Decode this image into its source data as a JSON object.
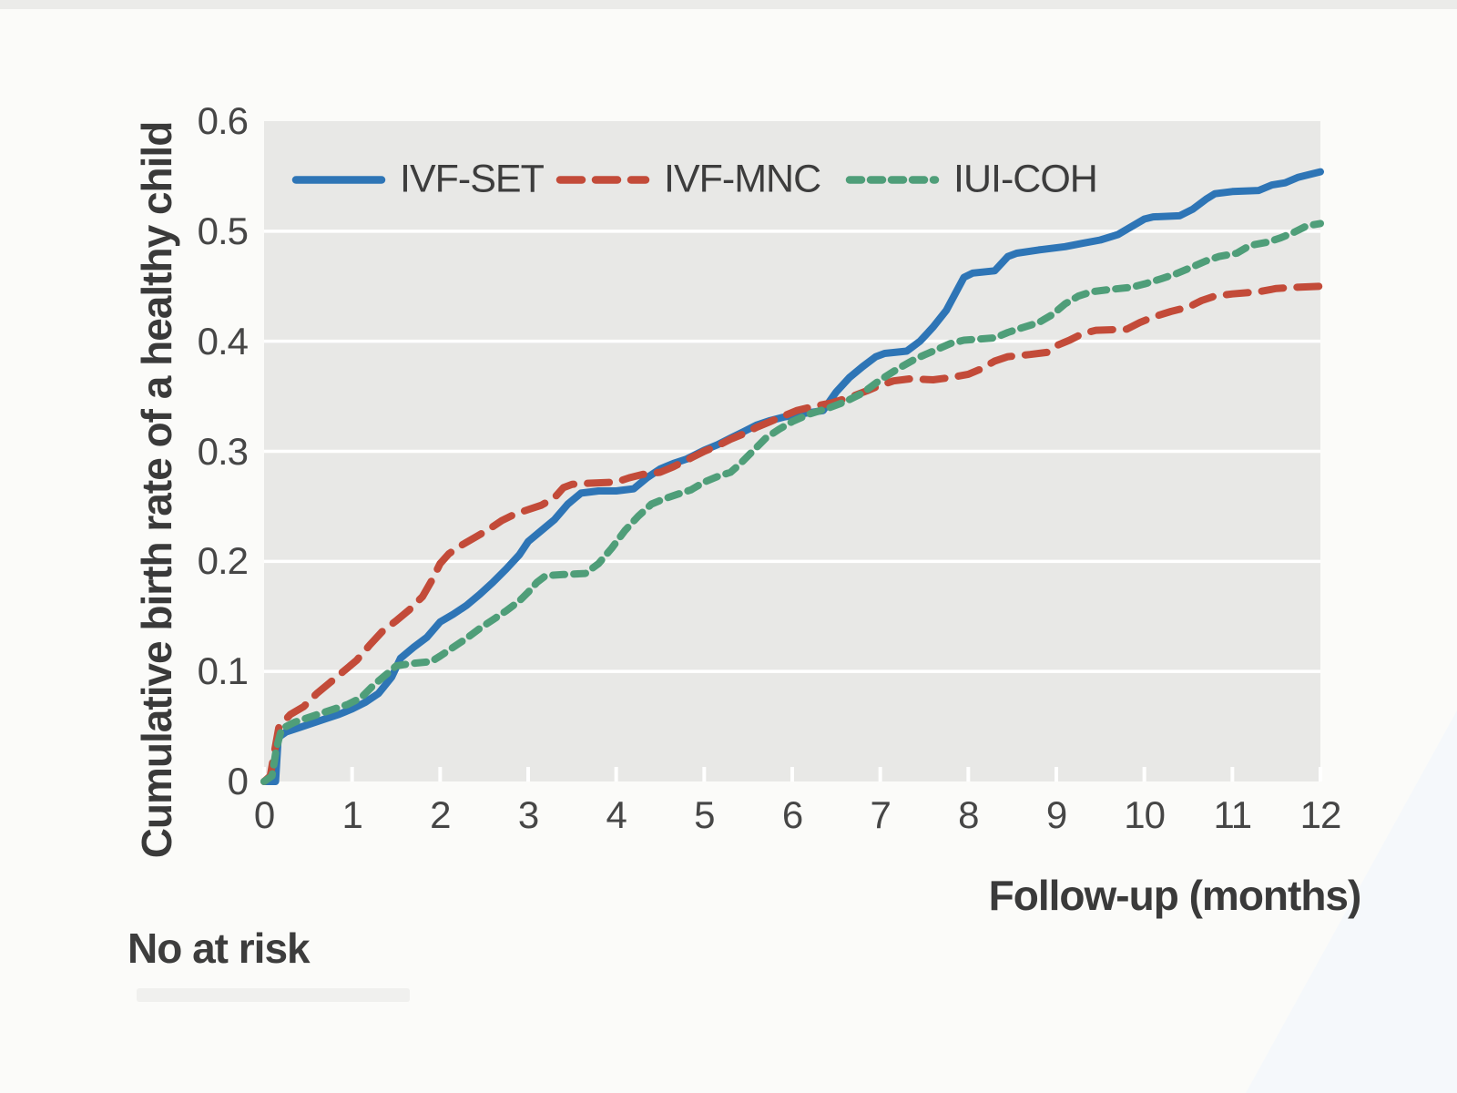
{
  "figure": {
    "footnote": "No at risk",
    "y_axis": {
      "title": "Cumulative birth rate of a healthy child",
      "tick_labels": [
        "0.6",
        "0.5",
        "0.4",
        "0.3",
        "0.2",
        "0.1",
        "0"
      ],
      "tick_values": [
        0.6,
        0.5,
        0.4,
        0.3,
        0.2,
        0.1,
        0
      ]
    },
    "x_axis": {
      "title": "Follow-up (months)",
      "tick_labels": [
        "0",
        "1",
        "2",
        "3",
        "4",
        "5",
        "6",
        "7",
        "8",
        "9",
        "10",
        "11",
        "12"
      ],
      "tick_values": [
        0,
        1,
        2,
        3,
        4,
        5,
        6,
        7,
        8,
        9,
        10,
        11,
        12
      ]
    }
  },
  "style": {
    "plot_background": "#e8e8e6",
    "gridline_color": "#ffffff",
    "page_background": "#fbfbf9",
    "text_color": "#3a3a3a",
    "tick_text_color": "#464646"
  },
  "legend": [
    {
      "label": "IVF-SET",
      "color": "#2e75b6",
      "dash": null
    },
    {
      "label": "IVF-MNC",
      "color": "#c34b39",
      "dash": [
        24,
        15
      ]
    },
    {
      "label": "IUI-COH",
      "color": "#4f9e79",
      "dash": [
        13,
        10
      ]
    }
  ],
  "chart_data": {
    "type": "line",
    "subtype": "cumulative-incidence-curves",
    "title": "",
    "xlabel": "Follow-up (months)",
    "ylabel": "Cumulative birth rate of a healthy child",
    "xlim": [
      0,
      12
    ],
    "ylim": [
      0,
      0.6
    ],
    "grid": "horizontal white gridlines on gray panel",
    "legend_position": "top-left inside plot",
    "series": [
      {
        "name": "IVF-SET",
        "color": "#2e75b6",
        "style": "solid",
        "dash": null,
        "points": [
          [
            0,
            0
          ],
          [
            0.13,
            0
          ],
          [
            0.16,
            0.04
          ],
          [
            0.25,
            0.045
          ],
          [
            0.4,
            0.049
          ],
          [
            0.55,
            0.053
          ],
          [
            0.7,
            0.057
          ],
          [
            0.85,
            0.061
          ],
          [
            1.0,
            0.066
          ],
          [
            1.15,
            0.072
          ],
          [
            1.3,
            0.08
          ],
          [
            1.45,
            0.095
          ],
          [
            1.55,
            0.112
          ],
          [
            1.7,
            0.122
          ],
          [
            1.85,
            0.131
          ],
          [
            2.0,
            0.145
          ],
          [
            2.15,
            0.152
          ],
          [
            2.3,
            0.16
          ],
          [
            2.45,
            0.17
          ],
          [
            2.6,
            0.181
          ],
          [
            2.75,
            0.193
          ],
          [
            2.9,
            0.206
          ],
          [
            3.0,
            0.218
          ],
          [
            3.15,
            0.228
          ],
          [
            3.3,
            0.238
          ],
          [
            3.45,
            0.252
          ],
          [
            3.6,
            0.262
          ],
          [
            3.8,
            0.264
          ],
          [
            4.0,
            0.264
          ],
          [
            4.2,
            0.266
          ],
          [
            4.35,
            0.276
          ],
          [
            4.5,
            0.284
          ],
          [
            4.65,
            0.289
          ],
          [
            4.8,
            0.293
          ],
          [
            5.0,
            0.301
          ],
          [
            5.15,
            0.306
          ],
          [
            5.3,
            0.312
          ],
          [
            5.45,
            0.318
          ],
          [
            5.6,
            0.324
          ],
          [
            5.75,
            0.328
          ],
          [
            5.9,
            0.331
          ],
          [
            6.1,
            0.334
          ],
          [
            6.35,
            0.337
          ],
          [
            6.5,
            0.354
          ],
          [
            6.65,
            0.367
          ],
          [
            6.8,
            0.377
          ],
          [
            6.95,
            0.386
          ],
          [
            7.05,
            0.389
          ],
          [
            7.3,
            0.391
          ],
          [
            7.45,
            0.4
          ],
          [
            7.6,
            0.413
          ],
          [
            7.75,
            0.428
          ],
          [
            7.85,
            0.443
          ],
          [
            7.95,
            0.458
          ],
          [
            8.05,
            0.462
          ],
          [
            8.3,
            0.464
          ],
          [
            8.45,
            0.477
          ],
          [
            8.55,
            0.48
          ],
          [
            8.8,
            0.483
          ],
          [
            9.1,
            0.486
          ],
          [
            9.3,
            0.489
          ],
          [
            9.5,
            0.492
          ],
          [
            9.7,
            0.497
          ],
          [
            9.85,
            0.504
          ],
          [
            10.0,
            0.511
          ],
          [
            10.1,
            0.513
          ],
          [
            10.4,
            0.514
          ],
          [
            10.55,
            0.52
          ],
          [
            10.7,
            0.529
          ],
          [
            10.8,
            0.534
          ],
          [
            11.0,
            0.536
          ],
          [
            11.3,
            0.537
          ],
          [
            11.45,
            0.542
          ],
          [
            11.6,
            0.544
          ],
          [
            11.75,
            0.549
          ],
          [
            11.9,
            0.552
          ],
          [
            12.0,
            0.554
          ]
        ]
      },
      {
        "name": "IVF-MNC",
        "color": "#c34b39",
        "style": "dashed",
        "dash": [
          24,
          15
        ],
        "points": [
          [
            0,
            0
          ],
          [
            0.07,
            0.005
          ],
          [
            0.12,
            0.028
          ],
          [
            0.17,
            0.05
          ],
          [
            0.3,
            0.061
          ],
          [
            0.45,
            0.068
          ],
          [
            0.6,
            0.08
          ],
          [
            0.75,
            0.09
          ],
          [
            0.9,
            0.1
          ],
          [
            1.05,
            0.11
          ],
          [
            1.2,
            0.124
          ],
          [
            1.35,
            0.137
          ],
          [
            1.5,
            0.146
          ],
          [
            1.65,
            0.156
          ],
          [
            1.8,
            0.168
          ],
          [
            1.9,
            0.182
          ],
          [
            2.0,
            0.198
          ],
          [
            2.1,
            0.207
          ],
          [
            2.25,
            0.215
          ],
          [
            2.4,
            0.222
          ],
          [
            2.55,
            0.229
          ],
          [
            2.7,
            0.237
          ],
          [
            2.85,
            0.243
          ],
          [
            3.0,
            0.247
          ],
          [
            3.15,
            0.251
          ],
          [
            3.3,
            0.258
          ],
          [
            3.4,
            0.267
          ],
          [
            3.5,
            0.27
          ],
          [
            3.7,
            0.271
          ],
          [
            4.0,
            0.272
          ],
          [
            4.15,
            0.276
          ],
          [
            4.3,
            0.279
          ],
          [
            4.5,
            0.281
          ],
          [
            4.65,
            0.286
          ],
          [
            4.8,
            0.292
          ],
          [
            5.0,
            0.3
          ],
          [
            5.15,
            0.305
          ],
          [
            5.3,
            0.311
          ],
          [
            5.45,
            0.316
          ],
          [
            5.6,
            0.322
          ],
          [
            5.75,
            0.327
          ],
          [
            5.9,
            0.332
          ],
          [
            6.05,
            0.337
          ],
          [
            6.25,
            0.341
          ],
          [
            6.45,
            0.344
          ],
          [
            6.65,
            0.349
          ],
          [
            6.85,
            0.355
          ],
          [
            7.0,
            0.36
          ],
          [
            7.15,
            0.364
          ],
          [
            7.35,
            0.366
          ],
          [
            7.6,
            0.365
          ],
          [
            7.8,
            0.367
          ],
          [
            8.0,
            0.37
          ],
          [
            8.15,
            0.375
          ],
          [
            8.3,
            0.382
          ],
          [
            8.45,
            0.386
          ],
          [
            8.7,
            0.388
          ],
          [
            8.9,
            0.39
          ],
          [
            9.0,
            0.396
          ],
          [
            9.15,
            0.401
          ],
          [
            9.3,
            0.407
          ],
          [
            9.45,
            0.41
          ],
          [
            9.8,
            0.411
          ],
          [
            9.95,
            0.417
          ],
          [
            10.1,
            0.422
          ],
          [
            10.3,
            0.427
          ],
          [
            10.5,
            0.431
          ],
          [
            10.65,
            0.437
          ],
          [
            10.8,
            0.441
          ],
          [
            11.0,
            0.443
          ],
          [
            11.3,
            0.445
          ],
          [
            11.5,
            0.448
          ],
          [
            11.7,
            0.449
          ],
          [
            12.0,
            0.45
          ]
        ]
      },
      {
        "name": "IUI-COH",
        "color": "#4f9e79",
        "style": "short-dashed",
        "dash": [
          13,
          10
        ],
        "points": [
          [
            0,
            0
          ],
          [
            0.09,
            0.005
          ],
          [
            0.14,
            0.03
          ],
          [
            0.2,
            0.048
          ],
          [
            0.35,
            0.054
          ],
          [
            0.5,
            0.058
          ],
          [
            0.65,
            0.062
          ],
          [
            0.8,
            0.066
          ],
          [
            0.95,
            0.07
          ],
          [
            1.1,
            0.076
          ],
          [
            1.25,
            0.088
          ],
          [
            1.4,
            0.098
          ],
          [
            1.5,
            0.105
          ],
          [
            1.65,
            0.107
          ],
          [
            1.9,
            0.109
          ],
          [
            2.0,
            0.114
          ],
          [
            2.15,
            0.122
          ],
          [
            2.3,
            0.13
          ],
          [
            2.45,
            0.139
          ],
          [
            2.6,
            0.147
          ],
          [
            2.75,
            0.155
          ],
          [
            2.9,
            0.164
          ],
          [
            3.0,
            0.172
          ],
          [
            3.1,
            0.181
          ],
          [
            3.2,
            0.187
          ],
          [
            3.4,
            0.188
          ],
          [
            3.65,
            0.189
          ],
          [
            3.8,
            0.198
          ],
          [
            3.95,
            0.212
          ],
          [
            4.1,
            0.228
          ],
          [
            4.25,
            0.241
          ],
          [
            4.4,
            0.252
          ],
          [
            4.55,
            0.257
          ],
          [
            4.7,
            0.261
          ],
          [
            4.85,
            0.265
          ],
          [
            5.0,
            0.272
          ],
          [
            5.15,
            0.277
          ],
          [
            5.3,
            0.281
          ],
          [
            5.4,
            0.288
          ],
          [
            5.55,
            0.3
          ],
          [
            5.7,
            0.312
          ],
          [
            5.85,
            0.32
          ],
          [
            6.0,
            0.327
          ],
          [
            6.2,
            0.334
          ],
          [
            6.4,
            0.339
          ],
          [
            6.6,
            0.345
          ],
          [
            6.8,
            0.353
          ],
          [
            7.0,
            0.365
          ],
          [
            7.2,
            0.375
          ],
          [
            7.4,
            0.384
          ],
          [
            7.6,
            0.391
          ],
          [
            7.8,
            0.398
          ],
          [
            7.95,
            0.401
          ],
          [
            8.3,
            0.403
          ],
          [
            8.45,
            0.408
          ],
          [
            8.6,
            0.412
          ],
          [
            8.8,
            0.417
          ],
          [
            8.95,
            0.424
          ],
          [
            9.1,
            0.434
          ],
          [
            9.25,
            0.441
          ],
          [
            9.4,
            0.445
          ],
          [
            9.6,
            0.447
          ],
          [
            9.85,
            0.449
          ],
          [
            10.0,
            0.452
          ],
          [
            10.2,
            0.457
          ],
          [
            10.35,
            0.461
          ],
          [
            10.5,
            0.466
          ],
          [
            10.7,
            0.473
          ],
          [
            10.85,
            0.477
          ],
          [
            11.05,
            0.48
          ],
          [
            11.2,
            0.487
          ],
          [
            11.4,
            0.49
          ],
          [
            11.55,
            0.494
          ],
          [
            11.7,
            0.499
          ],
          [
            11.85,
            0.505
          ],
          [
            12.0,
            0.507
          ]
        ]
      }
    ]
  }
}
